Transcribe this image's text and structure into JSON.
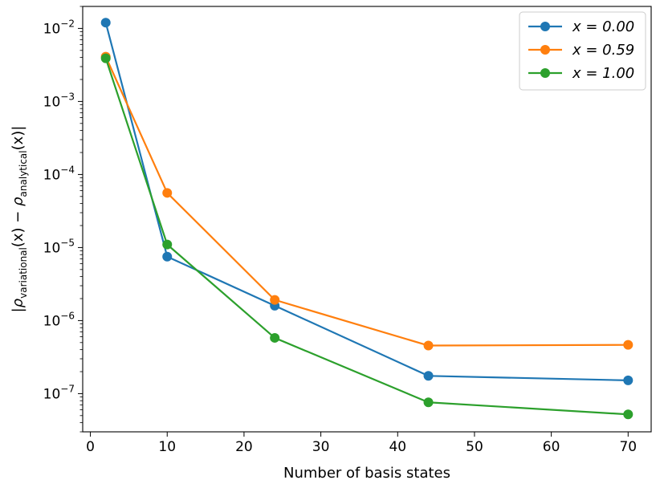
{
  "chart_data": {
    "type": "line",
    "xlabel": "Number of basis states",
    "ylabel_parts": {
      "open": "|",
      "rho": "ρ",
      "sub1": "variational",
      "mid": "(x) − ",
      "sub2": "analytical",
      "close": "(x)|"
    },
    "xlim": [
      -1,
      73
    ],
    "ylim": [
      3e-08,
      0.02
    ],
    "yscale": "log",
    "legend_position": "top-right",
    "x": [
      2,
      10,
      24,
      44,
      70
    ],
    "x_ticks": [
      "0",
      "10",
      "20",
      "30",
      "40",
      "50",
      "60",
      "70"
    ],
    "y_ticks": [
      {
        "base": "10",
        "exp": "−2"
      },
      {
        "base": "10",
        "exp": "−3"
      },
      {
        "base": "10",
        "exp": "−4"
      },
      {
        "base": "10",
        "exp": "−5"
      },
      {
        "base": "10",
        "exp": "−6"
      },
      {
        "base": "10",
        "exp": "−7"
      }
    ],
    "series": [
      {
        "name": "x = 0.00",
        "color": "#1f77b4",
        "values": [
          0.012,
          7.5e-06,
          1.6e-06,
          1.75e-07,
          1.52e-07
        ]
      },
      {
        "name": "x = 0.59",
        "color": "#ff7f0e",
        "values": [
          0.0041,
          5.6e-05,
          1.92e-06,
          4.55e-07,
          4.65e-07
        ]
      },
      {
        "name": "x = 1.00",
        "color": "#2ca02c",
        "values": [
          0.0039,
          1.1e-05,
          5.8e-07,
          7.6e-08,
          5.2e-08
        ]
      }
    ]
  }
}
